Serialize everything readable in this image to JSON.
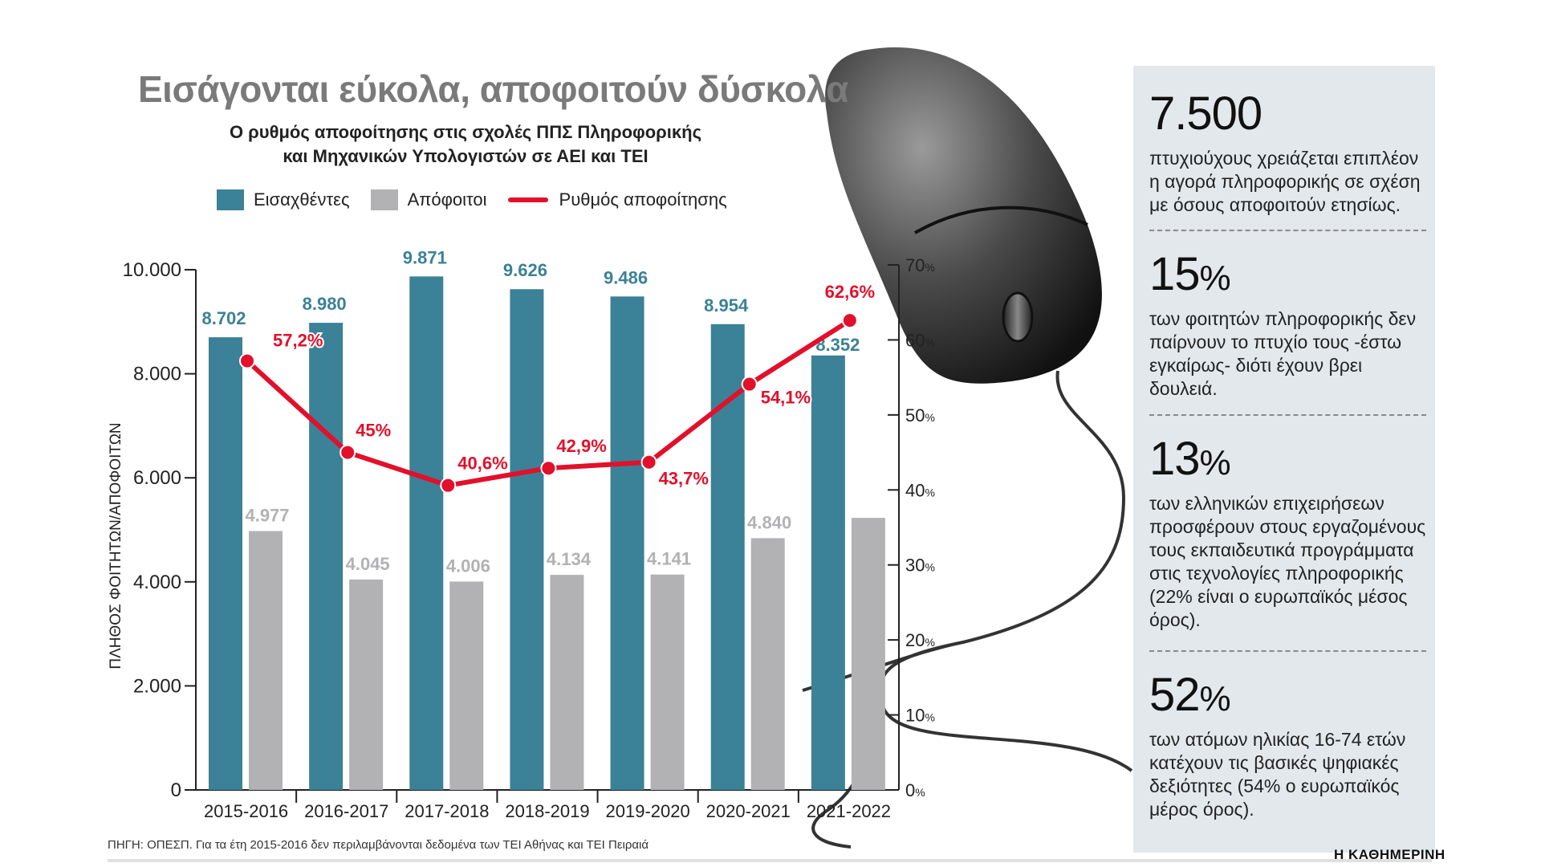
{
  "title": "Εισάγονται εύκολα, αποφοιτούν δύσκολα",
  "subtitle_line1": "Ο ρυθμός αποφοίτησης στις σχολές ΠΠΣ Πληροφορικής",
  "subtitle_line2": "και Μηχανικών Υπολογιστών σε ΑΕΙ και ΤΕΙ",
  "legend": {
    "admitted": "Εισαχθέντες",
    "graduates": "Απόφοιτοι",
    "rate": "Ρυθμός αποφοίτησης"
  },
  "colors": {
    "admitted": "#3b8197",
    "graduates": "#b2b2b4",
    "rate": "#e2102a",
    "panel": "#e3e8ec"
  },
  "chart_data": {
    "type": "bar",
    "categories": [
      "2015-2016",
      "2016-2017",
      "2017-2018",
      "2018-2019",
      "2019-2020",
      "2020-2021",
      "2021-2022"
    ],
    "series": [
      {
        "name": "Εισαχθέντες",
        "axis": "left",
        "values": [
          8702,
          8980,
          9871,
          9626,
          9486,
          8954,
          8352
        ],
        "labels": [
          "8.702",
          "8.980",
          "9.871",
          "9.626",
          "9.486",
          "8.954",
          "8.352"
        ]
      },
      {
        "name": "Απόφοιτοι",
        "axis": "left",
        "values": [
          4977,
          4045,
          4006,
          4134,
          4141,
          4840,
          5230
        ],
        "labels": [
          "4.977",
          "4.045",
          "4.006",
          "4.134",
          "4.141",
          "4.840",
          ""
        ]
      },
      {
        "name": "Ρυθμός αποφοίτησης",
        "type": "line",
        "axis": "right",
        "values": [
          57.2,
          45,
          40.6,
          42.9,
          43.7,
          54.1,
          62.6
        ],
        "labels": [
          "57,2%",
          "45%",
          "40,6%",
          "42,9%",
          "43,7%",
          "54,1%",
          "62,6%"
        ]
      }
    ],
    "ylabel": "ΠΛΗΘΟΣ ΦΟΙΤΗΤΩΝ/ΑΠΟΦΟΙΤΩΝ",
    "ylim": [
      0,
      10000
    ],
    "left_ticks": [
      "0",
      "2.000",
      "4.000",
      "6.000",
      "8.000",
      "10.000"
    ],
    "y2lim": [
      0,
      70
    ],
    "right_ticks": [
      "0",
      "10",
      "20",
      "30",
      "40",
      "50",
      "60",
      "70"
    ],
    "right_tick_suffix": "%"
  },
  "source": "ΠΗΓΗ: ΟΠΕΣΠ. Για τα έτη 2015-2016 δεν περιλαμβάνονται δεδομένα των ΤΕΙ Αθήνας και ΤΕΙ Πειραιά",
  "brand": "Η ΚΑΘΗΜΕΡΙΝΗ",
  "stats": [
    {
      "number": "7.500",
      "unit": "",
      "text": "πτυχιούχους χρειάζεται επιπλέον η αγορά πληροφορικής σε σχέση με όσους αποφοιτούν ετησίως."
    },
    {
      "number": "15",
      "unit": "%",
      "text": "των φοιτητών πληροφορικής δεν παίρνουν το πτυχίο τους -έστω εγκαίρως- διότι έχουν βρει δουλειά."
    },
    {
      "number": "13",
      "unit": "%",
      "text": "των ελληνικών επιχειρήσεων προσφέρουν στους εργαζομένους τους εκπαιδευτικά προγράμματα στις τεχνολογίες πληροφορικής (22% είναι ο ευρωπαϊκός μέσος όρος)."
    },
    {
      "number": "52",
      "unit": "%",
      "text": "των ατόμων ηλικίας 16-74 ετών κατέχουν τις βασικές ψηφιακές δεξιότητες (54% ο ευρωπαϊκός μέρος όρος)."
    }
  ]
}
